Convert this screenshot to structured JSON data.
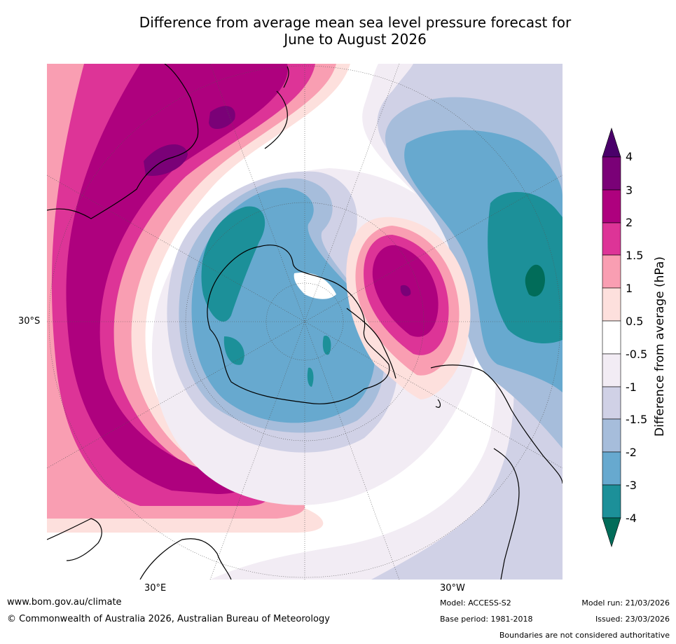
{
  "title_line1": "Difference from average mean sea level pressure forecast for",
  "title_line2": "June to August 2026",
  "map": {
    "lat_label": "30°S",
    "lon_label_left": "30°E",
    "lon_label_right": "30°W"
  },
  "colorbar": {
    "title": "Difference from average (hPa)",
    "tick_labels": [
      "4",
      "3",
      "2",
      "1.5",
      "1",
      "0.5",
      "-0.5",
      "-1",
      "-1.5",
      "-2",
      "-3",
      "-4"
    ],
    "colors": {
      "gt4": "#4a006a",
      "c3_4": "#7a0177",
      "c2_3": "#ae017e",
      "c15_2": "#dd3497",
      "c1_15": "#f99eb2",
      "c05_1": "#fde0dd",
      "c0": "#ffffff",
      "cm1_m05": "#f2ecf4",
      "cm15_m1": "#d0d1e6",
      "cm2_m15": "#a6bddb",
      "cm3_m2": "#67a9cf",
      "cm4_m3": "#1c9099",
      "ltm4": "#016c59"
    }
  },
  "footer": {
    "url": "www.bom.gov.au/climate",
    "copyright": "© Commonwealth of Australia 2026, Australian Bureau of Meteorology",
    "model": "Model: ACCESS-S2",
    "base_period": "Base period: 1981-2018",
    "model_run": "Model run: 21/03/2026",
    "issued": "Issued: 23/03/2026",
    "disclaimer": "Boundaries are not considered authoritative"
  }
}
